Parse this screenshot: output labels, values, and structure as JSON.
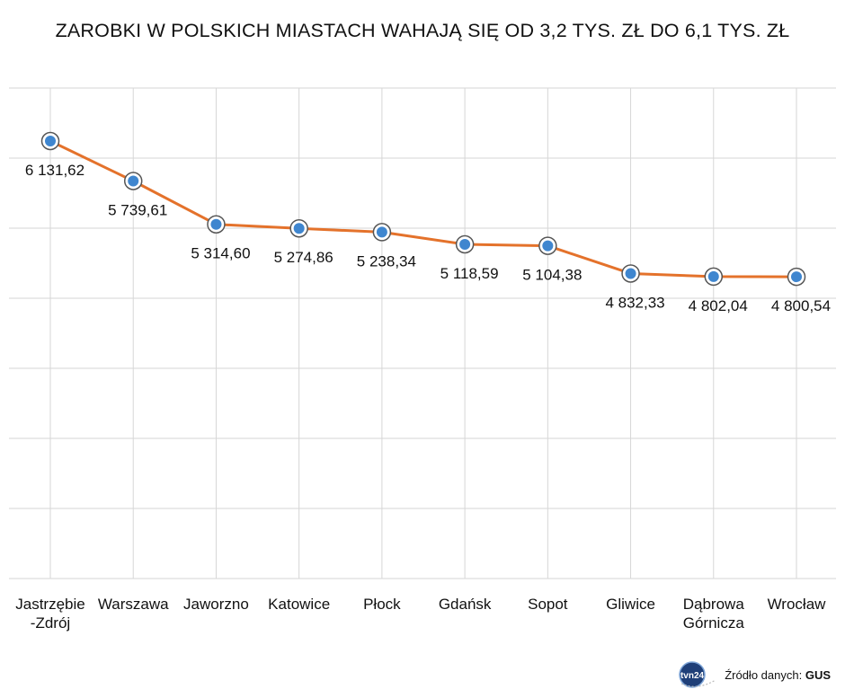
{
  "title": "ZAROBKI W POLSKICH MIASTACH WAHAJĄ SIĘ OD 3,2 TYS. ZŁ DO 6,1 TYS. ZŁ",
  "footer": {
    "source_prefix": "Źródło danych:",
    "source_name": "GUS",
    "logo_text": "tvn24"
  },
  "colors": {
    "line": "#e4722b",
    "marker_fill": "#3f86cf",
    "marker_ring": "#555555",
    "grid": "#d6d6d6"
  },
  "chart_data": {
    "type": "line",
    "title": "ZAROBKI W POLSKICH MIASTACH WAHAJĄ SIĘ OD 3,2 TYS. ZŁ DO 6,1 TYS. ZŁ",
    "categories": [
      "Jastrzębie\n-Zdrój",
      "Warszawa",
      "Jaworzno",
      "Katowice",
      "Płock",
      "Gdańsk",
      "Sopot",
      "Gliwice",
      "Dąbrowa\nGórnicza",
      "Wrocław"
    ],
    "values": [
      6131.62,
      5739.61,
      5314.6,
      5274.86,
      5238.34,
      5118.59,
      5104.38,
      4832.33,
      4802.04,
      4800.54
    ],
    "value_labels": [
      "6 131,62",
      "5 739,61",
      "5 314,60",
      "5 274,86",
      "5 238,34",
      "5 118,59",
      "5 104,38",
      "4 832,33",
      "4 802,04",
      "4 800,54"
    ],
    "grid": true,
    "legend": "none"
  }
}
